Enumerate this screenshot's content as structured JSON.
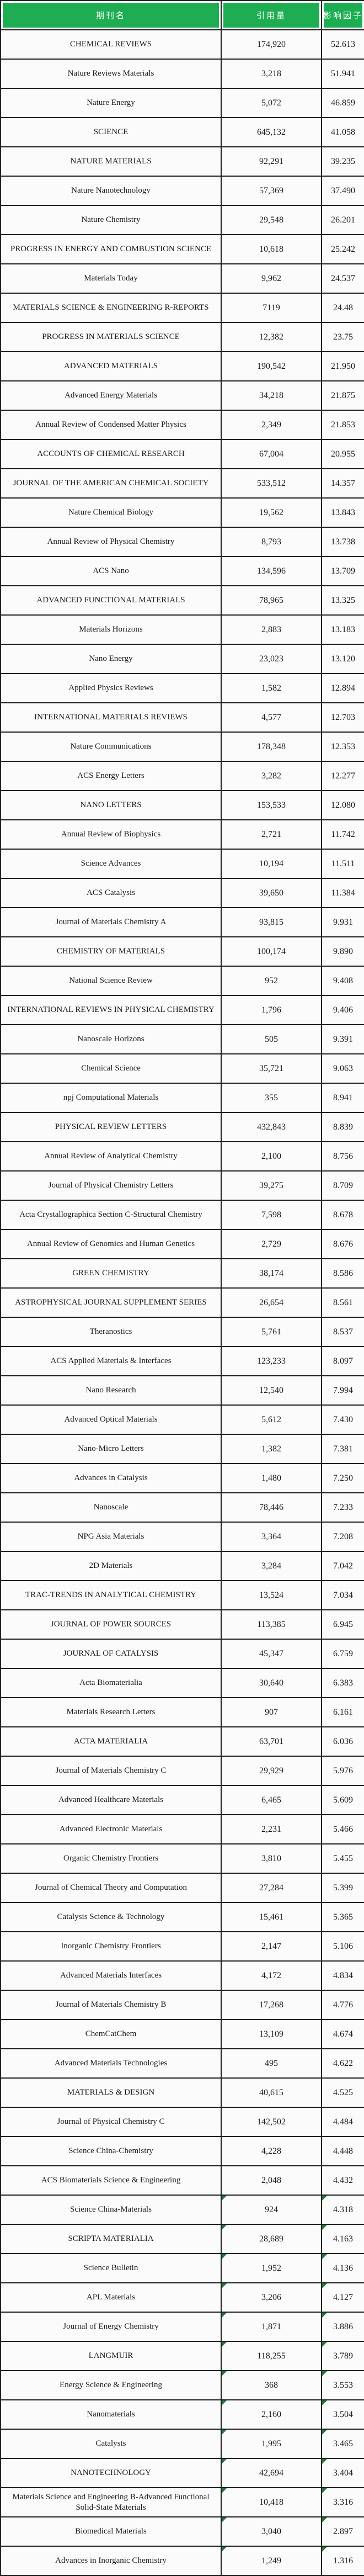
{
  "table": {
    "colors": {
      "header_green": "#1ead52",
      "header_text": "#f2fff4",
      "border": "#1f1f1f",
      "row_bg": "#fbfbfb",
      "flag_green": "#1d7a38"
    },
    "headers": [
      {
        "label": "期刊名"
      },
      {
        "label": "引用量"
      },
      {
        "label": "影响因子"
      }
    ],
    "rows": [
      {
        "name": "CHEMICAL REVIEWS",
        "citations": "174,920",
        "impact": "52.613"
      },
      {
        "name": "Nature Reviews Materials",
        "citations": "3,218",
        "impact": "51.941"
      },
      {
        "name": "Nature Energy",
        "citations": "5,072",
        "impact": "46.859"
      },
      {
        "name": "SCIENCE",
        "citations": "645,132",
        "impact": "41.058"
      },
      {
        "name": "NATURE MATERIALS",
        "citations": "92,291",
        "impact": "39.235"
      },
      {
        "name": "Nature Nanotechnology",
        "citations": "57,369",
        "impact": "37.490"
      },
      {
        "name": "Nature Chemistry",
        "citations": "29,548",
        "impact": "26.201"
      },
      {
        "name": "PROGRESS IN ENERGY AND COMBUSTION SCIENCE",
        "citations": "10,618",
        "impact": "25.242"
      },
      {
        "name": "Materials Today",
        "citations": "9,962",
        "impact": "24.537"
      },
      {
        "name": "MATERIALS SCIENCE & ENGINEERING R-REPORTS",
        "citations": "7119",
        "impact": "24.48"
      },
      {
        "name": "PROGRESS IN MATERIALS SCIENCE",
        "citations": "12,382",
        "impact": "23.75"
      },
      {
        "name": "ADVANCED MATERIALS",
        "citations": "190,542",
        "impact": "21.950"
      },
      {
        "name": "Advanced Energy Materials",
        "citations": "34,218",
        "impact": "21.875"
      },
      {
        "name": "Annual Review of Condensed Matter Physics",
        "citations": "2,349",
        "impact": "21.853"
      },
      {
        "name": "ACCOUNTS OF CHEMICAL RESEARCH",
        "citations": "67,004",
        "impact": "20.955"
      },
      {
        "name": "JOURNAL OF THE AMERICAN CHEMICAL SOCIETY",
        "citations": "533,512",
        "impact": "14.357"
      },
      {
        "name": "Nature Chemical Biology",
        "citations": "19,562",
        "impact": "13.843"
      },
      {
        "name": "Annual Review of Physical Chemistry",
        "citations": "8,793",
        "impact": "13.738"
      },
      {
        "name": "ACS Nano",
        "citations": "134,596",
        "impact": "13.709"
      },
      {
        "name": "ADVANCED FUNCTIONAL MATERIALS",
        "citations": "78,965",
        "impact": "13.325"
      },
      {
        "name": "Materials Horizons",
        "citations": "2,883",
        "impact": "13.183"
      },
      {
        "name": "Nano Energy",
        "citations": "23,023",
        "impact": "13.120"
      },
      {
        "name": "Applied Physics Reviews",
        "citations": "1,582",
        "impact": "12.894"
      },
      {
        "name": "INTERNATIONAL MATERIALS REVIEWS",
        "citations": "4,577",
        "impact": "12.703"
      },
      {
        "name": "Nature Communications",
        "citations": "178,348",
        "impact": "12.353"
      },
      {
        "name": "ACS Energy Letters",
        "citations": "3,282",
        "impact": "12.277"
      },
      {
        "name": "NANO LETTERS",
        "citations": "153,533",
        "impact": "12.080"
      },
      {
        "name": "Annual Review of Biophysics",
        "citations": "2,721",
        "impact": "11.742"
      },
      {
        "name": "Science Advances",
        "citations": "10,194",
        "impact": "11.511"
      },
      {
        "name": "ACS Catalysis",
        "citations": "39,650",
        "impact": "11.384"
      },
      {
        "name": "Journal of Materials Chemistry A",
        "citations": "93,815",
        "impact": "9.931"
      },
      {
        "name": "CHEMISTRY OF MATERIALS",
        "citations": "100,174",
        "impact": "9.890"
      },
      {
        "name": "National Science Review",
        "citations": "952",
        "impact": "9.408"
      },
      {
        "name": "INTERNATIONAL REVIEWS IN PHYSICAL CHEMISTRY",
        "citations": "1,796",
        "impact": "9.406"
      },
      {
        "name": "Nanoscale Horizons",
        "citations": "505",
        "impact": "9.391"
      },
      {
        "name": "Chemical Science",
        "citations": "35,721",
        "impact": "9.063"
      },
      {
        "name": "npj Computational Materials",
        "citations": "355",
        "impact": "8.941"
      },
      {
        "name": "PHYSICAL REVIEW LETTERS",
        "citations": "432,843",
        "impact": "8.839"
      },
      {
        "name": "Annual Review of Analytical Chemistry",
        "citations": "2,100",
        "impact": "8.756"
      },
      {
        "name": "Journal of Physical Chemistry Letters",
        "citations": "39,275",
        "impact": "8.709"
      },
      {
        "name": "Acta Crystallographica Section C-Structural Chemistry",
        "citations": "7,598",
        "impact": "8.678"
      },
      {
        "name": "Annual Review of Genomics and Human Genetics",
        "citations": "2,729",
        "impact": "8.676"
      },
      {
        "name": "GREEN CHEMISTRY",
        "citations": "38,174",
        "impact": "8.586"
      },
      {
        "name": "ASTROPHYSICAL JOURNAL SUPPLEMENT SERIES",
        "citations": "26,654",
        "impact": "8.561"
      },
      {
        "name": "Theranostics",
        "citations": "5,761",
        "impact": "8.537"
      },
      {
        "name": "ACS Applied Materials & Interfaces",
        "citations": "123,233",
        "impact": "8.097"
      },
      {
        "name": "Nano Research",
        "citations": "12,540",
        "impact": "7.994"
      },
      {
        "name": "Advanced Optical Materials",
        "citations": "5,612",
        "impact": "7.430"
      },
      {
        "name": "Nano-Micro Letters",
        "citations": "1,382",
        "impact": "7.381"
      },
      {
        "name": "Advances in Catalysis",
        "citations": "1,480",
        "impact": "7.250"
      },
      {
        "name": "Nanoscale",
        "citations": "78,446",
        "impact": "7.233"
      },
      {
        "name": "NPG Asia Materials",
        "citations": "3,364",
        "impact": "7.208"
      },
      {
        "name": "2D Materials",
        "citations": "3,284",
        "impact": "7.042"
      },
      {
        "name": "TRAC-TRENDS IN ANALYTICAL CHEMISTRY",
        "citations": "13,524",
        "impact": "7.034"
      },
      {
        "name": "JOURNAL OF POWER SOURCES",
        "citations": "113,385",
        "impact": "6.945"
      },
      {
        "name": "JOURNAL OF CATALYSIS",
        "citations": "45,347",
        "impact": "6.759"
      },
      {
        "name": "Acta Biomaterialia",
        "citations": "30,640",
        "impact": "6.383"
      },
      {
        "name": "Materials Research Letters",
        "citations": "907",
        "impact": "6.161"
      },
      {
        "name": "ACTA MATERIALIA",
        "citations": "63,701",
        "impact": "6.036"
      },
      {
        "name": "Journal of Materials Chemistry C",
        "citations": "29,929",
        "impact": "5.976"
      },
      {
        "name": "Advanced Healthcare Materials",
        "citations": "6,465",
        "impact": "5.609"
      },
      {
        "name": "Advanced Electronic Materials",
        "citations": "2,231",
        "impact": "5.466"
      },
      {
        "name": "Organic Chemistry Frontiers",
        "citations": "3,810",
        "impact": "5.455"
      },
      {
        "name": "Journal of Chemical Theory and Computation",
        "citations": "27,284",
        "impact": "5.399"
      },
      {
        "name": "Catalysis Science & Technology",
        "citations": "15,461",
        "impact": "5.365"
      },
      {
        "name": "Inorganic Chemistry Frontiers",
        "citations": "2,147",
        "impact": "5.106"
      },
      {
        "name": "Advanced Materials Interfaces",
        "citations": "4,172",
        "impact": "4.834"
      },
      {
        "name": "Journal of Materials Chemistry B",
        "citations": "17,268",
        "impact": "4.776"
      },
      {
        "name": "ChemCatChem",
        "citations": "13,109",
        "impact": "4.674"
      },
      {
        "name": "Advanced Materials Technologies",
        "citations": "495",
        "impact": "4.622"
      },
      {
        "name": "MATERIALS & DESIGN",
        "citations": "40,615",
        "impact": "4.525"
      },
      {
        "name": "Journal of Physical Chemistry C",
        "citations": "142,502",
        "impact": "4.484"
      },
      {
        "name": "Science China-Chemistry",
        "citations": "4,228",
        "impact": "4.448"
      },
      {
        "name": "ACS Biomaterials Science & Engineering",
        "citations": "2,048",
        "impact": "4.432"
      },
      {
        "name": "Science China-Materials",
        "citations": "924",
        "impact": "4.318",
        "flagged": true
      },
      {
        "name": "SCRIPTA MATERIALIA",
        "citations": "28,689",
        "impact": "4.163",
        "flagged": true
      },
      {
        "name": "Science Bulletin",
        "citations": "1,952",
        "impact": "4.136",
        "flagged": true
      },
      {
        "name": "APL Materials",
        "citations": "3,206",
        "impact": "4.127",
        "flagged": true
      },
      {
        "name": "Journal of Energy Chemistry",
        "citations": "1,871",
        "impact": "3.886",
        "flagged": true
      },
      {
        "name": "LANGMUIR",
        "citations": "118,255",
        "impact": "3.789",
        "flagged": true
      },
      {
        "name": "Energy Science & Engineering",
        "citations": "368",
        "impact": "3.553",
        "flagged": true
      },
      {
        "name": "Nanomaterials",
        "citations": "2,160",
        "impact": "3.504",
        "flagged": true
      },
      {
        "name": "Catalysts",
        "citations": "1,995",
        "impact": "3.465",
        "flagged": true
      },
      {
        "name": "NANOTECHNOLOGY",
        "citations": "42,694",
        "impact": "3.404",
        "flagged": true
      },
      {
        "name": "Materials Science and Engineering B-Advanced Functional Solid-State Materials",
        "citations": "10,418",
        "impact": "3.316",
        "flagged": true
      },
      {
        "name": "Biomedical Materials",
        "citations": "3,040",
        "impact": "2.897",
        "flagged": true
      },
      {
        "name": "Advances in Inorganic Chemistry",
        "citations": "1,249",
        "impact": "1.316",
        "flagged": true
      }
    ]
  }
}
